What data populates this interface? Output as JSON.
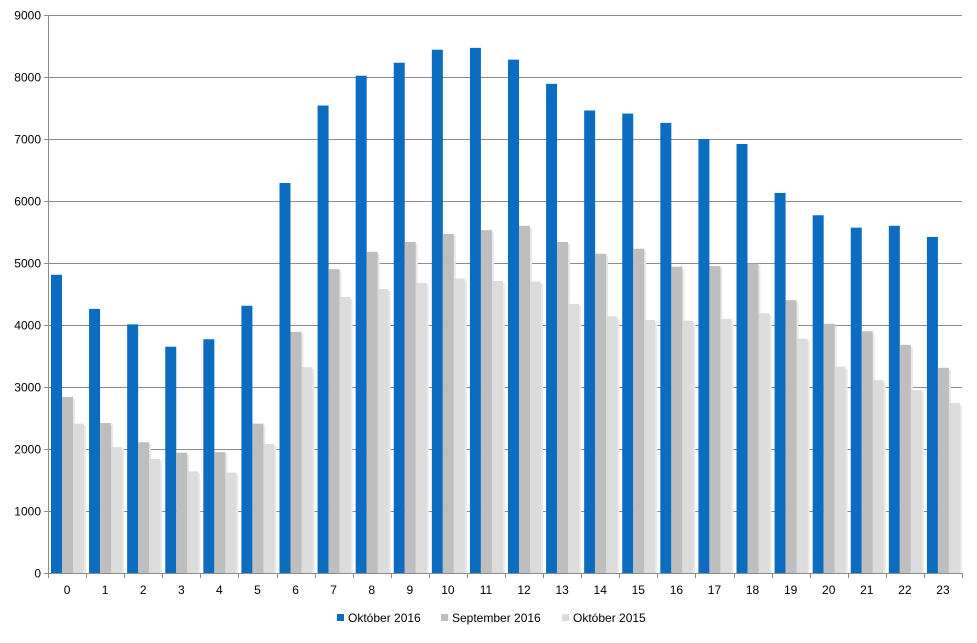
{
  "chart_data": {
    "type": "bar",
    "categories": [
      "0",
      "1",
      "2",
      "3",
      "4",
      "5",
      "6",
      "7",
      "8",
      "9",
      "10",
      "11",
      "12",
      "13",
      "14",
      "15",
      "16",
      "17",
      "18",
      "19",
      "20",
      "21",
      "22",
      "23"
    ],
    "ylim": [
      0,
      9000
    ],
    "y_ticks": [
      "0",
      "1000",
      "2000",
      "3000",
      "4000",
      "5000",
      "6000",
      "7000",
      "8000",
      "9000"
    ],
    "grid": true,
    "legend_position": "bottom",
    "series": [
      {
        "name": "Október 2016",
        "color": "#0B6CC0",
        "values": [
          4810,
          4260,
          4010,
          3650,
          3770,
          4310,
          6290,
          7540,
          8020,
          8230,
          8440,
          8470,
          8280,
          7890,
          7460,
          7410,
          7260,
          7000,
          6920,
          6130,
          5770,
          5570,
          5600,
          5420
        ]
      },
      {
        "name": "September 2016",
        "color": "#BEBEBE",
        "values": [
          2840,
          2420,
          2110,
          1940,
          1950,
          2410,
          3890,
          4900,
          5180,
          5340,
          5470,
          5530,
          5600,
          5340,
          5150,
          5230,
          4940,
          4950,
          4990,
          4400,
          4020,
          3900,
          3680,
          3310
        ]
      },
      {
        "name": "Október 2015",
        "color": "#DCDCDC",
        "values": [
          2410,
          2030,
          1840,
          1640,
          1620,
          2080,
          3320,
          4450,
          4580,
          4680,
          4750,
          4710,
          4700,
          4340,
          4140,
          4080,
          4070,
          4100,
          4190,
          3780,
          3330,
          3110,
          2950,
          2740
        ]
      }
    ]
  }
}
